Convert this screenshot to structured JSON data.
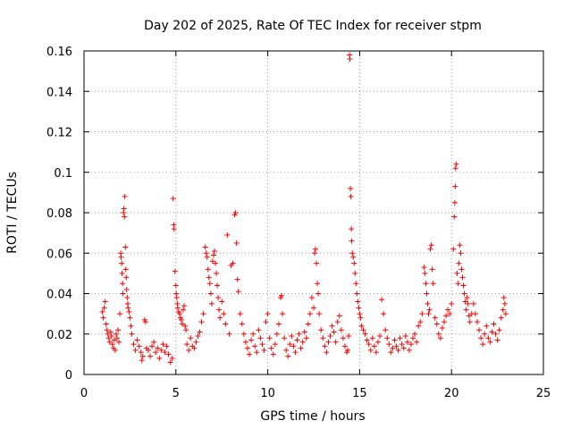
{
  "chart_data": {
    "type": "scatter",
    "title": "Day 202 of 2025, Rate Of TEC Index for receiver stpm",
    "xlabel": "GPS time / hours",
    "ylabel": "ROTI / TECUs",
    "xlim": [
      0,
      25
    ],
    "ylim": [
      0,
      0.16
    ],
    "x_ticks": [
      "0",
      "5",
      "10",
      "15",
      "20",
      "25"
    ],
    "y_ticks": [
      "0",
      "0.02",
      "0.04",
      "0.06",
      "0.08",
      "0.1",
      "0.12",
      "0.14",
      "0.16"
    ],
    "grid": true,
    "marker": "+",
    "color": "#ff0000",
    "series": [
      {
        "values": [
          [
            1.0,
            0.031
          ],
          [
            1.05,
            0.028
          ],
          [
            1.1,
            0.033
          ],
          [
            1.15,
            0.036
          ],
          [
            1.2,
            0.025
          ],
          [
            1.25,
            0.022
          ],
          [
            1.3,
            0.02
          ],
          [
            1.35,
            0.018
          ],
          [
            1.4,
            0.016
          ],
          [
            1.45,
            0.021
          ],
          [
            1.5,
            0.019
          ],
          [
            1.55,
            0.015
          ],
          [
            1.6,
            0.013
          ],
          [
            1.65,
            0.017
          ],
          [
            1.7,
            0.012
          ],
          [
            1.75,
            0.02
          ],
          [
            1.8,
            0.018
          ],
          [
            1.85,
            0.022
          ],
          [
            1.9,
            0.016
          ],
          [
            1.95,
            0.03
          ],
          [
            2.0,
            0.06
          ],
          [
            2.02,
            0.058
          ],
          [
            2.05,
            0.055
          ],
          [
            2.07,
            0.05
          ],
          [
            2.1,
            0.045
          ],
          [
            2.12,
            0.04
          ],
          [
            2.15,
            0.08
          ],
          [
            2.17,
            0.082
          ],
          [
            2.2,
            0.078
          ],
          [
            2.22,
            0.088
          ],
          [
            2.25,
            0.063
          ],
          [
            2.27,
            0.052
          ],
          [
            2.3,
            0.048
          ],
          [
            2.32,
            0.042
          ],
          [
            2.35,
            0.038
          ],
          [
            2.38,
            0.035
          ],
          [
            2.4,
            0.033
          ],
          [
            2.45,
            0.031
          ],
          [
            2.5,
            0.028
          ],
          [
            2.55,
            0.024
          ],
          [
            2.6,
            0.02
          ],
          [
            2.7,
            0.015
          ],
          [
            2.8,
            0.012
          ],
          [
            2.9,
            0.017
          ],
          [
            3.0,
            0.014
          ],
          [
            3.1,
            0.011
          ],
          [
            3.15,
            0.007
          ],
          [
            3.2,
            0.009
          ],
          [
            3.3,
            0.027
          ],
          [
            3.35,
            0.026
          ],
          [
            3.4,
            0.013
          ],
          [
            3.5,
            0.012
          ],
          [
            3.6,
            0.009
          ],
          [
            3.7,
            0.014
          ],
          [
            3.8,
            0.016
          ],
          [
            3.9,
            0.011
          ],
          [
            4.0,
            0.013
          ],
          [
            4.1,
            0.008
          ],
          [
            4.2,
            0.012
          ],
          [
            4.3,
            0.015
          ],
          [
            4.4,
            0.011
          ],
          [
            4.5,
            0.014
          ],
          [
            4.6,
            0.01
          ],
          [
            4.7,
            0.006
          ],
          [
            4.8,
            0.008
          ],
          [
            4.85,
            0.087
          ],
          [
            4.88,
            0.074
          ],
          [
            4.9,
            0.072
          ],
          [
            4.95,
            0.051
          ],
          [
            5.0,
            0.044
          ],
          [
            5.02,
            0.04
          ],
          [
            5.05,
            0.038
          ],
          [
            5.08,
            0.035
          ],
          [
            5.1,
            0.033
          ],
          [
            5.15,
            0.031
          ],
          [
            5.2,
            0.03
          ],
          [
            5.25,
            0.028
          ],
          [
            5.3,
            0.027
          ],
          [
            5.35,
            0.025
          ],
          [
            5.4,
            0.032
          ],
          [
            5.45,
            0.034
          ],
          [
            5.5,
            0.024
          ],
          [
            5.55,
            0.022
          ],
          [
            5.6,
            0.015
          ],
          [
            5.7,
            0.012
          ],
          [
            5.8,
            0.018
          ],
          [
            5.9,
            0.014
          ],
          [
            6.0,
            0.013
          ],
          [
            6.1,
            0.016
          ],
          [
            6.2,
            0.019
          ],
          [
            6.3,
            0.021
          ],
          [
            6.4,
            0.026
          ],
          [
            6.5,
            0.03
          ],
          [
            6.6,
            0.063
          ],
          [
            6.65,
            0.06
          ],
          [
            6.7,
            0.058
          ],
          [
            6.75,
            0.052
          ],
          [
            6.8,
            0.048
          ],
          [
            6.85,
            0.045
          ],
          [
            6.9,
            0.04
          ],
          [
            6.95,
            0.035
          ],
          [
            7.0,
            0.056
          ],
          [
            7.05,
            0.059
          ],
          [
            7.1,
            0.061
          ],
          [
            7.15,
            0.055
          ],
          [
            7.2,
            0.05
          ],
          [
            7.25,
            0.044
          ],
          [
            7.3,
            0.038
          ],
          [
            7.35,
            0.032
          ],
          [
            7.4,
            0.028
          ],
          [
            7.5,
            0.036
          ],
          [
            7.6,
            0.03
          ],
          [
            7.7,
            0.025
          ],
          [
            7.8,
            0.069
          ],
          [
            7.9,
            0.02
          ],
          [
            8.0,
            0.054
          ],
          [
            8.1,
            0.055
          ],
          [
            8.2,
            0.079
          ],
          [
            8.25,
            0.08
          ],
          [
            8.3,
            0.065
          ],
          [
            8.35,
            0.047
          ],
          [
            8.4,
            0.041
          ],
          [
            8.5,
            0.03
          ],
          [
            8.6,
            0.025
          ],
          [
            8.7,
            0.02
          ],
          [
            8.8,
            0.016
          ],
          [
            8.9,
            0.013
          ],
          [
            9.0,
            0.01
          ],
          [
            9.1,
            0.017
          ],
          [
            9.2,
            0.02
          ],
          [
            9.3,
            0.014
          ],
          [
            9.4,
            0.011
          ],
          [
            9.5,
            0.022
          ],
          [
            9.6,
            0.018
          ],
          [
            9.7,
            0.015
          ],
          [
            9.8,
            0.012
          ],
          [
            9.9,
            0.026
          ],
          [
            10.0,
            0.03
          ],
          [
            10.1,
            0.018
          ],
          [
            10.2,
            0.013
          ],
          [
            10.3,
            0.01
          ],
          [
            10.4,
            0.015
          ],
          [
            10.5,
            0.02
          ],
          [
            10.6,
            0.025
          ],
          [
            10.7,
            0.038
          ],
          [
            10.75,
            0.039
          ],
          [
            10.8,
            0.03
          ],
          [
            10.9,
            0.018
          ],
          [
            11.0,
            0.012
          ],
          [
            11.1,
            0.009
          ],
          [
            11.2,
            0.015
          ],
          [
            11.3,
            0.019
          ],
          [
            11.4,
            0.014
          ],
          [
            11.5,
            0.011
          ],
          [
            11.6,
            0.017
          ],
          [
            11.7,
            0.02
          ],
          [
            11.8,
            0.013
          ],
          [
            11.9,
            0.016
          ],
          [
            12.0,
            0.021
          ],
          [
            12.1,
            0.018
          ],
          [
            12.2,
            0.025
          ],
          [
            12.3,
            0.03
          ],
          [
            12.4,
            0.038
          ],
          [
            12.5,
            0.033
          ],
          [
            12.55,
            0.06
          ],
          [
            12.6,
            0.062
          ],
          [
            12.65,
            0.055
          ],
          [
            12.7,
            0.045
          ],
          [
            12.75,
            0.04
          ],
          [
            12.8,
            0.03
          ],
          [
            12.9,
            0.022
          ],
          [
            13.0,
            0.018
          ],
          [
            13.1,
            0.014
          ],
          [
            13.2,
            0.011
          ],
          [
            13.3,
            0.016
          ],
          [
            13.4,
            0.019
          ],
          [
            13.5,
            0.024
          ],
          [
            13.6,
            0.021
          ],
          [
            13.7,
            0.016
          ],
          [
            13.8,
            0.026
          ],
          [
            13.9,
            0.029
          ],
          [
            14.0,
            0.022
          ],
          [
            14.1,
            0.018
          ],
          [
            14.2,
            0.014
          ],
          [
            14.3,
            0.011
          ],
          [
            14.35,
            0.012
          ],
          [
            14.4,
            0.019
          ],
          [
            14.45,
            0.158
          ],
          [
            14.47,
            0.156
          ],
          [
            14.5,
            0.092
          ],
          [
            14.52,
            0.088
          ],
          [
            14.55,
            0.072
          ],
          [
            14.57,
            0.066
          ],
          [
            14.6,
            0.06
          ],
          [
            14.65,
            0.058
          ],
          [
            14.7,
            0.055
          ],
          [
            14.75,
            0.05
          ],
          [
            14.8,
            0.045
          ],
          [
            14.85,
            0.04
          ],
          [
            14.9,
            0.036
          ],
          [
            14.95,
            0.033
          ],
          [
            15.0,
            0.03
          ],
          [
            15.05,
            0.028
          ],
          [
            15.1,
            0.024
          ],
          [
            15.2,
            0.022
          ],
          [
            15.3,
            0.02
          ],
          [
            15.4,
            0.017
          ],
          [
            15.5,
            0.015
          ],
          [
            15.6,
            0.012
          ],
          [
            15.7,
            0.018
          ],
          [
            15.8,
            0.014
          ],
          [
            15.9,
            0.011
          ],
          [
            16.0,
            0.016
          ],
          [
            16.1,
            0.019
          ],
          [
            16.2,
            0.037
          ],
          [
            16.3,
            0.03
          ],
          [
            16.4,
            0.022
          ],
          [
            16.5,
            0.018
          ],
          [
            16.6,
            0.015
          ],
          [
            16.7,
            0.011
          ],
          [
            16.8,
            0.013
          ],
          [
            16.9,
            0.017
          ],
          [
            17.0,
            0.014
          ],
          [
            17.1,
            0.012
          ],
          [
            17.2,
            0.018
          ],
          [
            17.3,
            0.015
          ],
          [
            17.4,
            0.013
          ],
          [
            17.5,
            0.019
          ],
          [
            17.6,
            0.016
          ],
          [
            17.7,
            0.012
          ],
          [
            17.8,
            0.015
          ],
          [
            17.9,
            0.018
          ],
          [
            18.0,
            0.02
          ],
          [
            18.1,
            0.016
          ],
          [
            18.2,
            0.024
          ],
          [
            18.3,
            0.026
          ],
          [
            18.4,
            0.03
          ],
          [
            18.5,
            0.053
          ],
          [
            18.55,
            0.05
          ],
          [
            18.6,
            0.045
          ],
          [
            18.65,
            0.04
          ],
          [
            18.7,
            0.035
          ],
          [
            18.75,
            0.03
          ],
          [
            18.8,
            0.032
          ],
          [
            18.85,
            0.062
          ],
          [
            18.9,
            0.064
          ],
          [
            18.95,
            0.052
          ],
          [
            19.0,
            0.045
          ],
          [
            19.1,
            0.028
          ],
          [
            19.2,
            0.025
          ],
          [
            19.3,
            0.02
          ],
          [
            19.4,
            0.018
          ],
          [
            19.5,
            0.023
          ],
          [
            19.6,
            0.026
          ],
          [
            19.7,
            0.029
          ],
          [
            19.8,
            0.032
          ],
          [
            19.9,
            0.03
          ],
          [
            20.0,
            0.035
          ],
          [
            20.1,
            0.062
          ],
          [
            20.15,
            0.078
          ],
          [
            20.18,
            0.085
          ],
          [
            20.2,
            0.093
          ],
          [
            20.22,
            0.102
          ],
          [
            20.25,
            0.104
          ],
          [
            20.3,
            0.05
          ],
          [
            20.35,
            0.045
          ],
          [
            20.4,
            0.055
          ],
          [
            20.45,
            0.064
          ],
          [
            20.5,
            0.06
          ],
          [
            20.55,
            0.052
          ],
          [
            20.6,
            0.048
          ],
          [
            20.65,
            0.044
          ],
          [
            20.7,
            0.04
          ],
          [
            20.75,
            0.036
          ],
          [
            20.8,
            0.032
          ],
          [
            20.85,
            0.038
          ],
          [
            20.9,
            0.035
          ],
          [
            20.95,
            0.029
          ],
          [
            21.0,
            0.026
          ],
          [
            21.1,
            0.03
          ],
          [
            21.2,
            0.035
          ],
          [
            21.3,
            0.03
          ],
          [
            21.4,
            0.026
          ],
          [
            21.5,
            0.022
          ],
          [
            21.6,
            0.018
          ],
          [
            21.7,
            0.015
          ],
          [
            21.8,
            0.02
          ],
          [
            21.9,
            0.024
          ],
          [
            22.0,
            0.018
          ],
          [
            22.1,
            0.016
          ],
          [
            22.2,
            0.021
          ],
          [
            22.3,
            0.025
          ],
          [
            22.4,
            0.02
          ],
          [
            22.5,
            0.017
          ],
          [
            22.6,
            0.022
          ],
          [
            22.7,
            0.028
          ],
          [
            22.8,
            0.032
          ],
          [
            22.85,
            0.038
          ],
          [
            22.9,
            0.035
          ],
          [
            22.95,
            0.03
          ]
        ]
      }
    ]
  }
}
